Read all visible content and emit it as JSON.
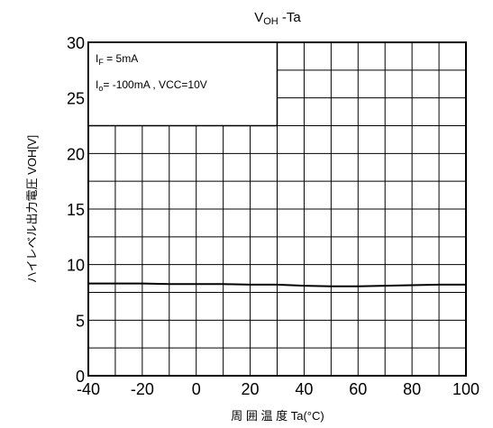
{
  "chart_data": {
    "type": "line",
    "title_main": "V",
    "title_sub": "OH",
    "title_rest": " -Ta",
    "xlabel": "周 囲 温 度  Ta(°C)",
    "ylabel": "ハイレベル出力電圧  VOH[V]",
    "xlim": [
      -40,
      100
    ],
    "ylim": [
      0,
      30
    ],
    "x_ticks": [
      -40,
      -20,
      0,
      20,
      40,
      60,
      80,
      100
    ],
    "y_ticks": [
      0,
      5,
      10,
      15,
      20,
      25,
      30
    ],
    "x_tick_labels": [
      "-40",
      "-20",
      "0",
      "20",
      "40",
      "60",
      "80",
      "100"
    ],
    "y_tick_labels": [
      "0",
      "5",
      "10",
      "15",
      "20",
      "25",
      "30"
    ],
    "grid": true,
    "annotations": {
      "line1_main": "I",
      "line1_sub": "F",
      "line1_rest": " = 5mA",
      "line2_main": "I",
      "line2_sub": "o",
      "line2_rest": "= -100mA , VCC=10V"
    },
    "series": [
      {
        "x": [
          -40,
          -30,
          -20,
          -10,
          0,
          10,
          20,
          30,
          40,
          50,
          60,
          70,
          80,
          90,
          100
        ],
        "y": [
          8.3,
          8.3,
          8.3,
          8.25,
          8.25,
          8.25,
          8.2,
          8.2,
          8.1,
          8.05,
          8.05,
          8.1,
          8.15,
          8.2,
          8.2
        ]
      }
    ],
    "colors": {
      "line": "#000000",
      "grid": "#000000"
    }
  }
}
